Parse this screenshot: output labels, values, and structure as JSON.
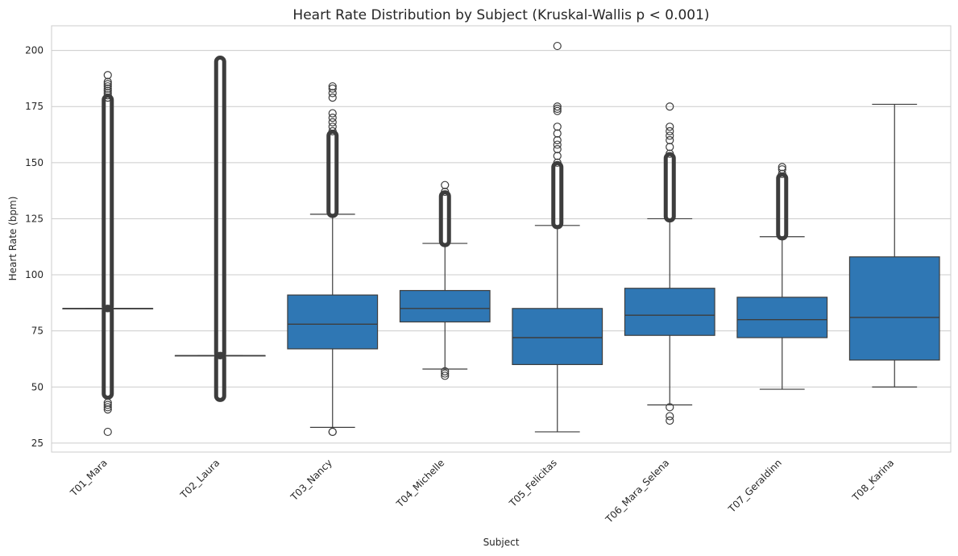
{
  "chart_data": {
    "type": "boxplot",
    "title": "Heart Rate Distribution by Subject (Kruskal-Wallis p < 0.001)",
    "xlabel": "Subject",
    "ylabel": "Heart Rate (bpm)",
    "ylim": [
      21,
      211
    ],
    "yticks": [
      25,
      50,
      75,
      100,
      125,
      150,
      175,
      200
    ],
    "grid": true,
    "box_color": "#2f77b4",
    "line_color": "#3d3d3d",
    "categories": [
      "T01_Mara",
      "T02_Laura",
      "T03_Nancy",
      "T04_Michelle",
      "T05_Felicitas",
      "T06_Mara_Selena",
      "T07_Geraldinn",
      "T08_Karina"
    ],
    "boxes": [
      {
        "subject": "T01_Mara",
        "whisker_low": 85,
        "q1": 85,
        "median": 85,
        "q3": 85,
        "whisker_high": 85,
        "outlier_ranges": [
          [
            47,
            84
          ],
          [
            86,
            178
          ]
        ],
        "outliers": [
          30,
          40,
          41,
          42,
          43,
          179,
          180,
          181,
          182,
          183,
          184,
          185,
          186,
          189
        ]
      },
      {
        "subject": "T02_Laura",
        "whisker_low": 64,
        "q1": 64,
        "median": 64,
        "q3": 64,
        "whisker_high": 64,
        "outlier_ranges": [
          [
            46,
            63
          ],
          [
            65,
            195
          ]
        ],
        "outliers": []
      },
      {
        "subject": "T03_Nancy",
        "whisker_low": 32,
        "q1": 67,
        "median": 78,
        "q3": 91,
        "whisker_high": 127,
        "outlier_ranges": [
          [
            128,
            162
          ]
        ],
        "outliers": [
          30,
          30,
          164,
          166,
          168,
          170,
          172,
          179,
          181,
          183,
          184
        ]
      },
      {
        "subject": "T04_Michelle",
        "whisker_low": 58,
        "q1": 79,
        "median": 85,
        "q3": 93,
        "whisker_high": 114,
        "outlier_ranges": [
          [
            115,
            135
          ]
        ],
        "outliers": [
          55,
          56,
          57,
          137,
          140
        ]
      },
      {
        "subject": "T05_Felicitas",
        "whisker_low": 30,
        "q1": 60,
        "median": 72,
        "q3": 85,
        "whisker_high": 122,
        "outlier_ranges": [
          [
            123,
            148
          ]
        ],
        "outliers": [
          150,
          153,
          156,
          158,
          160,
          163,
          166,
          173,
          174,
          175,
          202
        ]
      },
      {
        "subject": "T06_Mara_Selena",
        "whisker_low": 42,
        "q1": 73,
        "median": 82,
        "q3": 94,
        "whisker_high": 125,
        "outlier_ranges": [
          [
            126,
            152
          ]
        ],
        "outliers": [
          35,
          37,
          41,
          154,
          157,
          160,
          162,
          164,
          166,
          175
        ]
      },
      {
        "subject": "T07_Geraldinn",
        "whisker_low": 49,
        "q1": 72,
        "median": 80,
        "q3": 90,
        "whisker_high": 117,
        "outlier_ranges": [
          [
            118,
            143
          ]
        ],
        "outliers": [
          145,
          147,
          148
        ]
      },
      {
        "subject": "T08_Karina",
        "whisker_low": 50,
        "q1": 62,
        "median": 81,
        "q3": 108,
        "whisker_high": 176,
        "outlier_ranges": [],
        "outliers": []
      }
    ]
  }
}
